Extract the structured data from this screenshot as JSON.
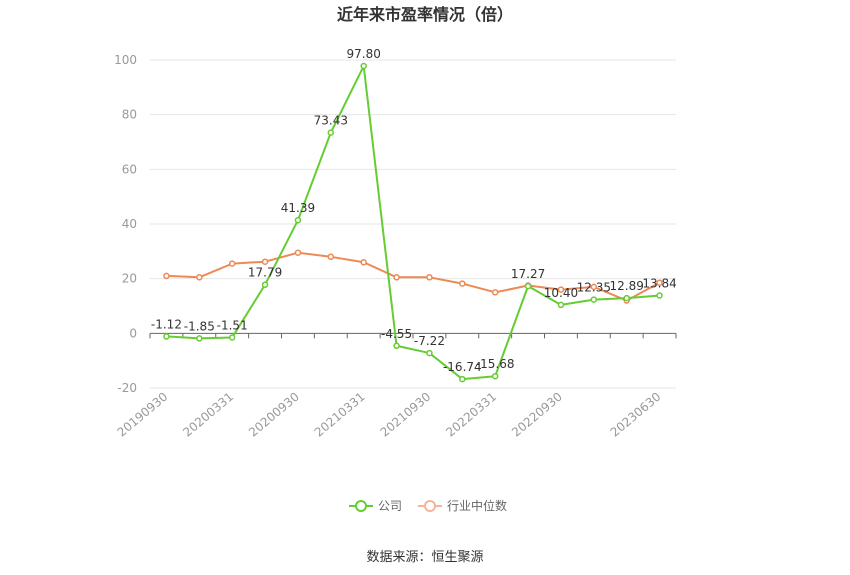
{
  "chart_data": {
    "type": "line",
    "title": "近年来市盈率情况（倍）",
    "xlabel": "",
    "ylabel": "",
    "ylim": [
      -20,
      100
    ],
    "yticks": [
      -20,
      0,
      20,
      40,
      60,
      80,
      100
    ],
    "x": [
      "20190930",
      "20191231",
      "20200331",
      "20200630",
      "20200930",
      "20201231",
      "20210331",
      "20210630",
      "20210930",
      "20211231",
      "20220331",
      "20220630",
      "20220930",
      "20221231",
      "20230331",
      "20230630"
    ],
    "x_tick_labels": [
      "20190930",
      "20200331",
      "20200930",
      "20210331",
      "20210930",
      "20220331",
      "20220930",
      "20230630"
    ],
    "series": [
      {
        "name": "公司",
        "color": "#66cc33",
        "values": [
          -1.12,
          -1.85,
          -1.51,
          17.79,
          41.39,
          73.43,
          97.8,
          -4.55,
          -7.22,
          -16.74,
          -15.68,
          17.27,
          10.4,
          12.35,
          12.89,
          13.84
        ],
        "labels": [
          "-1.12",
          "-1.85",
          "-1.51",
          "17.79",
          "41.39",
          "73.43",
          "97.80",
          "-4.55",
          "-7.22",
          "-16.74",
          "-15.68",
          "17.27",
          "10.40",
          "12.35",
          "12.89",
          "13.84"
        ]
      },
      {
        "name": "行业中位数",
        "color": "#ee8855",
        "values": [
          21.0,
          20.5,
          25.5,
          26.2,
          29.5,
          28.0,
          26.0,
          20.5,
          20.5,
          18.2,
          15.0,
          17.5,
          16.0,
          17.0,
          12.0,
          18.5
        ]
      }
    ],
    "grid": true,
    "legend_position": "bottom-center"
  },
  "footer": {
    "source": "数据来源：恒生聚源"
  }
}
